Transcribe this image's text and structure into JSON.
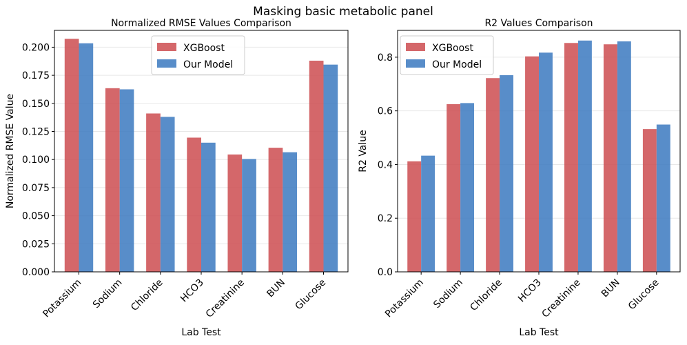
{
  "figure": {
    "suptitle": "Masking basic metabolic panel"
  },
  "colors": {
    "xgboost": "#cc4c50",
    "our_model": "#3b79bf",
    "grid": "#e8e8e8"
  },
  "chart_data": [
    {
      "type": "bar",
      "title": "Normalized RMSE Values Comparison",
      "xlabel": "Lab Test",
      "ylabel": "Normalized RMSE Value",
      "categories": [
        "Potassium",
        "Sodium",
        "Chloride",
        "HCO3",
        "Creatinine",
        "BUN",
        "Glucose"
      ],
      "series": [
        {
          "name": "XGBoost",
          "values": [
            0.2075,
            0.1635,
            0.141,
            0.1195,
            0.1045,
            0.1105,
            0.188
          ]
        },
        {
          "name": "Our Model",
          "values": [
            0.2035,
            0.1625,
            0.138,
            0.115,
            0.1005,
            0.1065,
            0.1845
          ]
        }
      ],
      "ylim": [
        0,
        0.215
      ],
      "yticks": [
        "0.000",
        "0.025",
        "0.050",
        "0.075",
        "0.100",
        "0.125",
        "0.150",
        "0.175",
        "0.200"
      ],
      "ytick_values": [
        0,
        0.025,
        0.05,
        0.075,
        0.1,
        0.125,
        0.15,
        0.175,
        0.2
      ],
      "grid": true,
      "legend": "top-center"
    },
    {
      "type": "bar",
      "title": "R2 Values Comparison",
      "xlabel": "Lab Test",
      "ylabel": "R2 Value",
      "categories": [
        "Potassium",
        "Sodium",
        "Chloride",
        "HCO3",
        "Creatinine",
        "BUN",
        "Glucose"
      ],
      "series": [
        {
          "name": "XGBoost",
          "values": [
            0.412,
            0.625,
            0.722,
            0.803,
            0.853,
            0.848,
            0.532
          ]
        },
        {
          "name": "Our Model",
          "values": [
            0.433,
            0.629,
            0.733,
            0.817,
            0.862,
            0.859,
            0.549
          ]
        }
      ],
      "ylim": [
        0,
        0.9
      ],
      "yticks": [
        "0.0",
        "0.2",
        "0.4",
        "0.6",
        "0.8"
      ],
      "ytick_values": [
        0,
        0.2,
        0.4,
        0.6,
        0.8
      ],
      "grid": true,
      "legend": "top-left"
    }
  ]
}
